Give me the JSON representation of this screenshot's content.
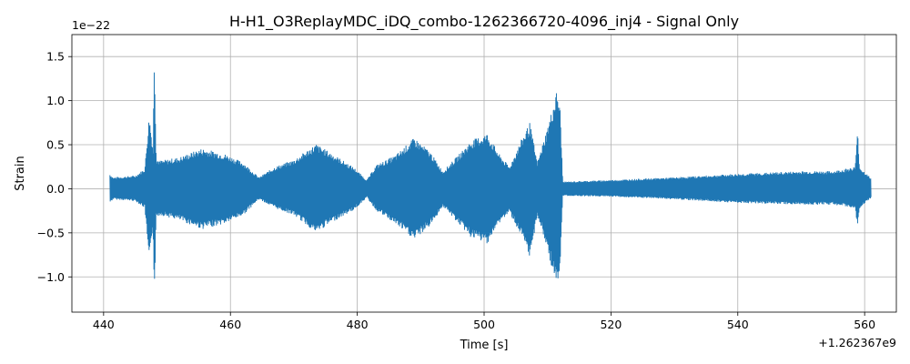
{
  "chart_data": {
    "type": "line",
    "title": "H-H1_O3ReplayMDC_iDQ_combo-1262366720-4096_inj4 - Signal Only",
    "xlabel": "Time [s]",
    "ylabel": "Strain",
    "x_offset_label": "+1.262367e9",
    "y_scale_label": "1e−22",
    "xlim": [
      435,
      565
    ],
    "ylim": [
      -1.4,
      1.75
    ],
    "x_ticks": [
      {
        "value": 440,
        "label": "440"
      },
      {
        "value": 460,
        "label": "460"
      },
      {
        "value": 480,
        "label": "480"
      },
      {
        "value": 500,
        "label": "500"
      },
      {
        "value": 520,
        "label": "520"
      },
      {
        "value": 540,
        "label": "540"
      },
      {
        "value": 560,
        "label": "560"
      }
    ],
    "y_ticks": [
      {
        "value": -1.0,
        "label": "−1.0"
      },
      {
        "value": -0.5,
        "label": "−0.5"
      },
      {
        "value": 0.0,
        "label": "0.0"
      },
      {
        "value": 0.5,
        "label": "0.5"
      },
      {
        "value": 1.0,
        "label": "1.0"
      },
      {
        "value": 1.5,
        "label": "1.5"
      }
    ],
    "grid": true,
    "line_color": "#1f77b4",
    "series": [
      {
        "x": [
          441.0,
          441.5,
          445.0,
          446.5,
          447.2,
          447.8,
          448.0,
          448.3,
          449.0,
          452.0,
          455.5,
          459.0,
          462.0,
          464.5,
          467.0,
          470.0,
          473.5,
          476.5,
          479.5,
          481.5,
          483.0,
          486.0,
          489.0,
          491.5,
          493.5,
          495.5,
          498.0,
          500.5,
          502.5,
          504.0,
          506.0,
          507.2,
          508.4,
          510.0,
          511.0,
          511.5,
          512.0,
          512.4,
          520.0,
          530.0,
          540.0,
          550.0,
          555.0,
          558.5,
          558.9,
          559.2,
          561.0
        ],
        "upper": [
          0.17,
          0.13,
          0.15,
          0.23,
          0.85,
          0.45,
          1.62,
          0.35,
          0.32,
          0.36,
          0.46,
          0.4,
          0.3,
          0.13,
          0.25,
          0.33,
          0.51,
          0.38,
          0.24,
          0.1,
          0.27,
          0.38,
          0.58,
          0.42,
          0.2,
          0.35,
          0.55,
          0.63,
          0.38,
          0.25,
          0.58,
          0.75,
          0.3,
          0.7,
          0.98,
          1.13,
          0.9,
          0.08,
          0.1,
          0.13,
          0.17,
          0.2,
          0.2,
          0.25,
          0.66,
          0.25,
          0.12
        ],
        "lower": [
          -0.16,
          -0.12,
          -0.14,
          -0.22,
          -0.85,
          -0.42,
          -1.25,
          -0.32,
          -0.3,
          -0.36,
          -0.46,
          -0.4,
          -0.3,
          -0.12,
          -0.22,
          -0.3,
          -0.5,
          -0.36,
          -0.24,
          -0.1,
          -0.25,
          -0.4,
          -0.58,
          -0.42,
          -0.2,
          -0.36,
          -0.56,
          -0.62,
          -0.38,
          -0.27,
          -0.56,
          -0.8,
          -0.3,
          -0.7,
          -1.0,
          -1.12,
          -0.9,
          -0.08,
          -0.09,
          -0.12,
          -0.16,
          -0.18,
          -0.18,
          -0.22,
          -0.45,
          -0.22,
          -0.11
        ]
      }
    ]
  }
}
